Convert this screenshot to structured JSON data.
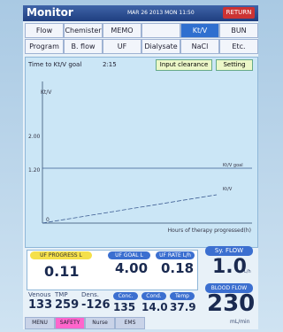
{
  "header": {
    "title": "Monitor",
    "datetime": "MAR 26 2013 MON 11:50",
    "return_button": "RETURN"
  },
  "tabs": {
    "row1": [
      "Flow",
      "Chemister",
      "MEMO",
      "",
      "Kt/V",
      "BUN"
    ],
    "row2": [
      "Program",
      "B. flow",
      "UF",
      "Dialysate",
      "NaCl",
      "Etc."
    ]
  },
  "ktv_panel": {
    "time_label": "Time to Kt/V goal",
    "time_value": "2:15",
    "input_button": "Input clearance",
    "setting_button": "Setting",
    "y_axis_label": "Kt/V",
    "y_labels": [
      "2.00",
      "1.20",
      "0"
    ],
    "line_label_1": "Kt/V goal",
    "line_label_2": "Kt/V",
    "x_axis_label": "Hours of therapy progressed(h)"
  },
  "uf": {
    "progress_label": "UF PROGRESS L",
    "progress_value": "0.11",
    "goal_label": "UF GOAL L",
    "goal_value": "4.00",
    "rate_label": "UF RATE L/h",
    "rate_value": "0.18"
  },
  "sy_flow": {
    "label": "Sy. FLOW",
    "value": "1.0",
    "unit": "L/h"
  },
  "pressures": {
    "labels": [
      "Venous",
      "TMP",
      "Dens."
    ],
    "values": [
      "133",
      "259",
      "-126"
    ]
  },
  "conc": {
    "labels": [
      "Conc.",
      "Cond.",
      "Temp"
    ],
    "values": [
      "135",
      "14.0",
      "37.9"
    ]
  },
  "blood_flow": {
    "label": "BLOOD FLOW",
    "value": "230",
    "unit": "mL/min"
  },
  "footer": [
    "MENU",
    "SAFETY",
    "Nurse",
    "EMS"
  ]
}
